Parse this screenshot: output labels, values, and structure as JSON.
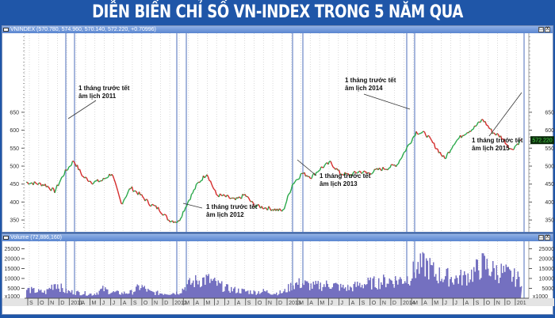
{
  "title": "DIỄN BIẾN CHỈ SỐ VN-INDEX TRONG 5 NĂM QUA",
  "price_panel": {
    "header": "VNINDEX (570.780, 574.960, 570.140, 572.220, +0.70996)",
    "current_value_label": "572.220",
    "buttons": [
      "□",
      "X"
    ]
  },
  "volume_panel": {
    "header": "Volume (72,886,160)",
    "unit_label": "x1000",
    "buttons": [
      "□",
      "X"
    ]
  },
  "colors": {
    "background": "#1f56a8",
    "up": "#2aa84a",
    "down": "#d42a2a",
    "volume": "#7470c0",
    "event_line": "#6a86c6"
  },
  "annotations": [
    {
      "line1": "1 tháng trước tết",
      "line2": "âm lịch 2011"
    },
    {
      "line1": "1 tháng trước tết",
      "line2": "âm lịch 2012"
    },
    {
      "line1": "1 tháng trước tết",
      "line2": "âm lịch 2013"
    },
    {
      "line1": "1 tháng trước tết",
      "line2": "âm lịch 2014"
    },
    {
      "line1": "1 tháng trước tết",
      "line2": "âm lịch 2015"
    }
  ],
  "x_axis_labels": [
    "S",
    "O",
    "N",
    "D",
    "2011",
    "A",
    "M",
    "J",
    "J",
    "A",
    "S",
    "O",
    "N",
    "D",
    "2012",
    "M",
    "A",
    "M",
    "J",
    "J",
    "A",
    "S",
    "O",
    "N",
    "D",
    "2013",
    "M",
    "A",
    "M",
    "J",
    "J",
    "A",
    "S",
    "O",
    "N",
    "D",
    "2014",
    "M",
    "A",
    "M",
    "J",
    "J",
    "A",
    "S",
    "O",
    "N",
    "D",
    "201"
  ],
  "chart_data": [
    {
      "type": "line",
      "title": "VNINDEX",
      "ylabel": "",
      "ylim": [
        315,
        870
      ],
      "yticks": [
        350,
        400,
        450,
        500,
        550,
        600,
        650
      ],
      "grid": true,
      "x": [
        "2010-09",
        "2010-10",
        "2010-11",
        "2010-12",
        "2011-01",
        "2011-02",
        "2011-03",
        "2011-04",
        "2011-05",
        "2011-06",
        "2011-07",
        "2011-08",
        "2011-09",
        "2011-10",
        "2011-11",
        "2011-12",
        "2012-01",
        "2012-02",
        "2012-03",
        "2012-04",
        "2012-05",
        "2012-06",
        "2012-07",
        "2012-08",
        "2012-09",
        "2012-10",
        "2012-11",
        "2012-12",
        "2013-01",
        "2013-02",
        "2013-03",
        "2013-04",
        "2013-05",
        "2013-06",
        "2013-07",
        "2013-08",
        "2013-09",
        "2013-10",
        "2013-11",
        "2013-12",
        "2014-01",
        "2014-02",
        "2014-03",
        "2014-04",
        "2014-05",
        "2014-06",
        "2014-07",
        "2014-08",
        "2014-09",
        "2014-10",
        "2014-11",
        "2014-12",
        "2015-01"
      ],
      "series": [
        {
          "name": "VNINDEX",
          "values": [
            455,
            452,
            448,
            430,
            480,
            515,
            470,
            455,
            460,
            480,
            395,
            440,
            420,
            395,
            380,
            350,
            345,
            400,
            450,
            480,
            420,
            415,
            405,
            420,
            390,
            385,
            380,
            375,
            450,
            480,
            470,
            495,
            510,
            480,
            475,
            485,
            480,
            490,
            495,
            505,
            550,
            595,
            590,
            555,
            520,
            565,
            590,
            605,
            630,
            595,
            580,
            545,
            572
          ]
        }
      ],
      "events": [
        "Tết 2011",
        "Tết 2012",
        "Tết 2013",
        "Tết 2014",
        "Tết 2015"
      ]
    },
    {
      "type": "bar",
      "title": "Volume",
      "ylabel": "x1000",
      "ylim": [
        0,
        28000
      ],
      "yticks": [
        5000,
        10000,
        15000,
        20000,
        25000
      ],
      "grid": true,
      "x": [
        "2010-09",
        "2010-10",
        "2010-11",
        "2010-12",
        "2011-01",
        "2011-02",
        "2011-03",
        "2011-04",
        "2011-05",
        "2011-06",
        "2011-07",
        "2011-08",
        "2011-09",
        "2011-10",
        "2011-11",
        "2011-12",
        "2012-01",
        "2012-02",
        "2012-03",
        "2012-04",
        "2012-05",
        "2012-06",
        "2012-07",
        "2012-08",
        "2012-09",
        "2012-10",
        "2012-11",
        "2012-12",
        "2013-01",
        "2013-02",
        "2013-03",
        "2013-04",
        "2013-05",
        "2013-06",
        "2013-07",
        "2013-08",
        "2013-09",
        "2013-10",
        "2013-11",
        "2013-12",
        "2014-01",
        "2014-02",
        "2014-03",
        "2014-04",
        "2014-05",
        "2014-06",
        "2014-07",
        "2014-08",
        "2014-09",
        "2014-10",
        "2014-11",
        "2014-12",
        "2015-01"
      ],
      "series": [
        {
          "name": "Volume",
          "values": [
            4500,
            3500,
            3000,
            8000,
            3500,
            3000,
            2500,
            2000,
            4500,
            3000,
            2500,
            3000,
            6000,
            3000,
            2500,
            2500,
            3000,
            7000,
            9000,
            9500,
            7000,
            5000,
            4000,
            3500,
            3000,
            3500,
            2500,
            3000,
            7000,
            7500,
            6000,
            6500,
            7000,
            5500,
            5000,
            7000,
            7500,
            8000,
            9000,
            9000,
            10000,
            15000,
            17000,
            12000,
            11000,
            10000,
            10500,
            13000,
            17000,
            14000,
            13000,
            11000,
            9000
          ]
        }
      ]
    }
  ]
}
